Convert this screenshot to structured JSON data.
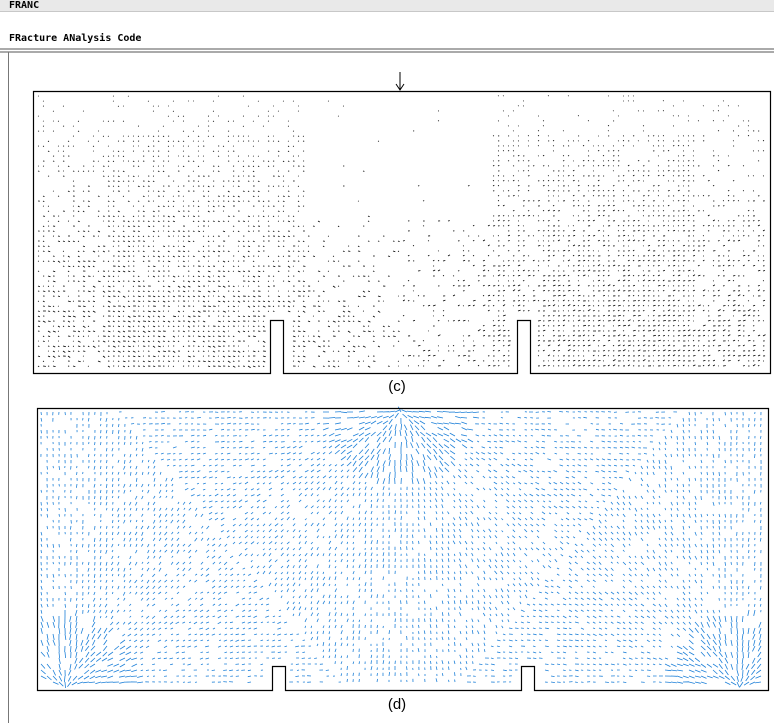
{
  "header": {
    "app_name": "FRANC",
    "subtitle": "FRacture ANalysis Code"
  },
  "figures": [
    {
      "label": "(c)"
    },
    {
      "label": "(d)"
    }
  ]
}
